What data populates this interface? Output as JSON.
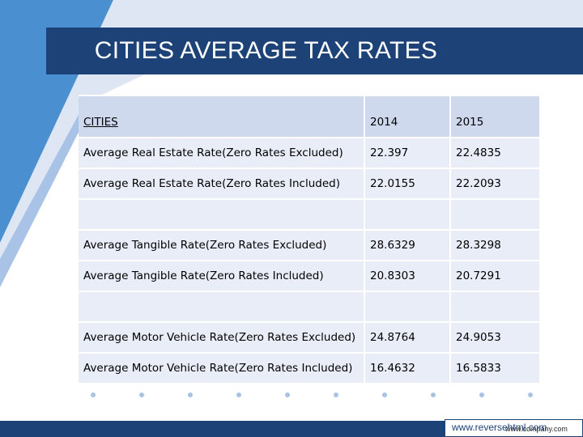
{
  "slide": {
    "title": "CITIES AVERAGE TAX RATES",
    "colors": {
      "accent": "#1c4278",
      "header_fill": "#cfd9ee",
      "row_fill": "#e9edf7",
      "light_blue": "#4a8fcf"
    }
  },
  "table": {
    "headers": [
      "CITIES",
      "2014",
      "2015"
    ],
    "rows": [
      [
        "Average Real Estate Rate(Zero Rates Excluded)",
        "22.397",
        "22.4835"
      ],
      [
        "Average Real Estate Rate(Zero Rates Included)",
        "22.0155",
        "22.2093"
      ],
      [
        "",
        "",
        ""
      ],
      [
        "Average Tangible Rate(Zero Rates Excluded)",
        "28.6329",
        "28.3298"
      ],
      [
        "Average Tangible Rate(Zero Rates Included)",
        "20.8303",
        "20.7291"
      ],
      [
        "",
        "",
        ""
      ],
      [
        "Average Motor Vehicle Rate(Zero Rates Excluded)",
        "24.8764",
        "24.9053"
      ],
      [
        "Average Motor Vehicle Rate(Zero Rates Included)",
        "16.4632",
        "16.5833"
      ]
    ]
  },
  "footer": {
    "watermark_text": "www.reversehtml.com",
    "company_text": "www.company.com"
  }
}
